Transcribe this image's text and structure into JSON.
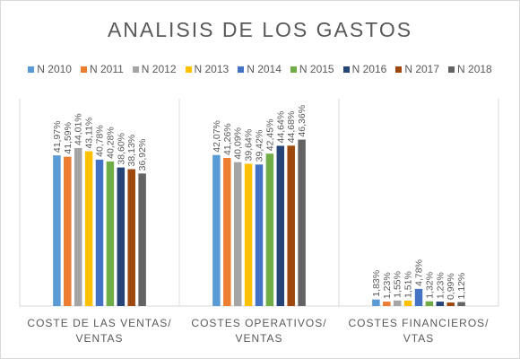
{
  "chart_data": {
    "type": "bar",
    "title": "ANALISIS DE LOS GASTOS",
    "xlabel": "",
    "ylabel": "",
    "ylim": [
      0,
      50
    ],
    "grid": false,
    "legend_position": "top",
    "categories": [
      [
        "COSTE DE LAS VENTAS/",
        "VENTAS"
      ],
      [
        "COSTES OPERATIVOS/",
        "VENTAS"
      ],
      [
        "COSTES FINANCIEROS/",
        "VTAS"
      ]
    ],
    "series": [
      {
        "name": "N 2010",
        "color": "#5b9bd5",
        "values": [
          41.97,
          42.07,
          1.83
        ],
        "labels": [
          "41,97%",
          "42,07%",
          "1,83%"
        ]
      },
      {
        "name": "N 2011",
        "color": "#ed7d31",
        "values": [
          41.59,
          41.26,
          1.23
        ],
        "labels": [
          "41,59%",
          "41,26%",
          "1,23%"
        ]
      },
      {
        "name": "N 2012",
        "color": "#a5a5a5",
        "values": [
          44.01,
          40.09,
          1.55
        ],
        "labels": [
          "44,01%",
          "40,09%",
          "1,55%"
        ]
      },
      {
        "name": "N 2013",
        "color": "#ffc000",
        "values": [
          43.11,
          39.64,
          1.51
        ],
        "labels": [
          "43,11%",
          "39,64%",
          "1,51%"
        ]
      },
      {
        "name": "N 2014",
        "color": "#4472c4",
        "values": [
          40.78,
          39.42,
          4.78
        ],
        "labels": [
          "40,78%",
          "39,42%",
          "4,78%"
        ]
      },
      {
        "name": "N 2015",
        "color": "#70ad47",
        "values": [
          40.28,
          42.45,
          1.32
        ],
        "labels": [
          "40,28%",
          "42,45%",
          "1,32%"
        ]
      },
      {
        "name": "N 2016",
        "color": "#264478",
        "values": [
          38.6,
          44.64,
          1.23
        ],
        "labels": [
          "38,60%",
          "44,64%",
          "1,23%"
        ]
      },
      {
        "name": "N 2017",
        "color": "#9e480e",
        "values": [
          38.13,
          44.68,
          0.99
        ],
        "labels": [
          "38,13%",
          "44,68%",
          "0,99%"
        ]
      },
      {
        "name": "N 2018",
        "color": "#636363",
        "values": [
          36.92,
          46.36,
          1.12
        ],
        "labels": [
          "36,92%",
          "46,36%",
          "1,12%"
        ]
      }
    ]
  }
}
